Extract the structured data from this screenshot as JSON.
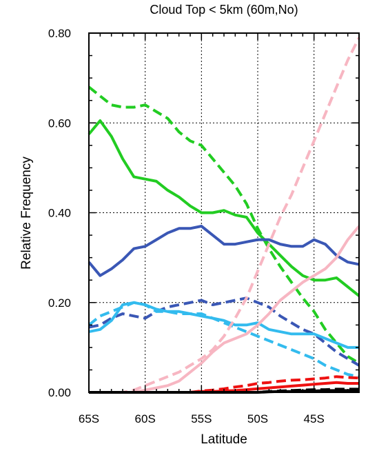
{
  "chart_data": {
    "type": "line",
    "title": "Cloud Top < 5km (60m,No)",
    "xlabel": "Latitude",
    "ylabel": "Relative Frequency",
    "xlim": [
      -65,
      -41
    ],
    "ylim": [
      0,
      0.8
    ],
    "grid": true,
    "x_ticks": [
      -65,
      -60,
      -55,
      -50,
      -45
    ],
    "x_tick_labels": [
      "65S",
      "60S",
      "55S",
      "50S",
      "45S"
    ],
    "y_ticks": [
      0,
      0.2,
      0.4,
      0.6,
      0.8
    ],
    "y_tick_labels": [
      "0.00",
      "0.20",
      "0.40",
      "0.60",
      "0.80"
    ],
    "x": [
      -65,
      -64,
      -63,
      -62,
      -61,
      -60,
      -59,
      -58,
      -57,
      -56,
      -55,
      -54,
      -53,
      -52,
      -51,
      -50,
      -49,
      -48,
      -47,
      -46,
      -45,
      -44,
      -43,
      -42,
      -41
    ],
    "series": [
      {
        "color": "#22cc22",
        "dash": false,
        "values": [
          0.575,
          0.605,
          0.57,
          0.52,
          0.48,
          0.475,
          0.47,
          0.45,
          0.435,
          0.415,
          0.4,
          0.4,
          0.405,
          0.395,
          0.39,
          0.355,
          0.33,
          0.305,
          0.28,
          0.26,
          0.25,
          0.25,
          0.255,
          0.235,
          0.215
        ]
      },
      {
        "color": "#22cc22",
        "dash": true,
        "values": [
          0.68,
          0.66,
          0.64,
          0.635,
          0.635,
          0.64,
          0.625,
          0.61,
          0.58,
          0.56,
          0.55,
          0.52,
          0.49,
          0.46,
          0.42,
          0.365,
          0.32,
          0.28,
          0.245,
          0.21,
          0.18,
          0.14,
          0.11,
          0.08,
          0.065
        ]
      },
      {
        "color": "#3a57b5",
        "dash": false,
        "values": [
          0.29,
          0.26,
          0.275,
          0.295,
          0.32,
          0.325,
          0.34,
          0.355,
          0.365,
          0.365,
          0.37,
          0.35,
          0.33,
          0.33,
          0.335,
          0.34,
          0.34,
          0.33,
          0.325,
          0.325,
          0.34,
          0.33,
          0.305,
          0.29,
          0.285
        ]
      },
      {
        "color": "#3a57b5",
        "dash": true,
        "values": [
          0.145,
          0.15,
          0.165,
          0.175,
          0.17,
          0.165,
          0.18,
          0.19,
          0.195,
          0.2,
          0.205,
          0.195,
          0.2,
          0.205,
          0.21,
          0.2,
          0.19,
          0.17,
          0.155,
          0.14,
          0.13,
          0.11,
          0.09,
          0.075,
          0.06
        ]
      },
      {
        "color": "#33bbee",
        "dash": false,
        "values": [
          0.135,
          0.14,
          0.16,
          0.195,
          0.2,
          0.195,
          0.185,
          0.18,
          0.18,
          0.175,
          0.17,
          0.165,
          0.16,
          0.15,
          0.15,
          0.155,
          0.14,
          0.135,
          0.13,
          0.13,
          0.13,
          0.12,
          0.11,
          0.1,
          0.1
        ]
      },
      {
        "color": "#33bbee",
        "dash": true,
        "values": [
          0.15,
          0.17,
          0.18,
          0.19,
          0.2,
          0.195,
          0.18,
          0.18,
          0.175,
          0.175,
          0.175,
          0.165,
          0.155,
          0.145,
          0.135,
          0.125,
          0.115,
          0.105,
          0.095,
          0.085,
          0.075,
          0.06,
          0.05,
          0.04,
          0.035
        ]
      },
      {
        "color": "#f7b6c2",
        "dash": false,
        "values": [
          0.0,
          0.0,
          0.0,
          0.0,
          0.0,
          0.005,
          0.01,
          0.015,
          0.025,
          0.045,
          0.065,
          0.09,
          0.11,
          0.12,
          0.13,
          0.15,
          0.175,
          0.205,
          0.225,
          0.245,
          0.26,
          0.275,
          0.3,
          0.34,
          0.37
        ]
      },
      {
        "color": "#f7b6c2",
        "dash": true,
        "values": [
          0.0,
          0.0,
          0.0,
          0.0,
          0.005,
          0.015,
          0.025,
          0.035,
          0.045,
          0.06,
          0.075,
          0.095,
          0.125,
          0.165,
          0.21,
          0.27,
          0.33,
          0.39,
          0.44,
          0.5,
          0.56,
          0.62,
          0.68,
          0.74,
          0.79
        ]
      },
      {
        "color": "#ee1111",
        "dash": false,
        "values": [
          0.0,
          0.0,
          0.0,
          0.0,
          0.0,
          0.0,
          0.0,
          0.0,
          0.0,
          0.0,
          0.002,
          0.002,
          0.003,
          0.004,
          0.006,
          0.008,
          0.01,
          0.012,
          0.014,
          0.016,
          0.018,
          0.02,
          0.022,
          0.02,
          0.02
        ]
      },
      {
        "color": "#ee1111",
        "dash": true,
        "values": [
          0.0,
          0.0,
          0.0,
          0.0,
          0.0,
          0.0,
          0.0,
          0.0,
          0.0,
          0.0,
          0.003,
          0.005,
          0.008,
          0.012,
          0.015,
          0.02,
          0.022,
          0.025,
          0.027,
          0.028,
          0.03,
          0.032,
          0.035,
          0.033,
          0.032
        ]
      },
      {
        "color": "#000000",
        "dash": false,
        "values": [
          0.0,
          0.0,
          0.0,
          0.0,
          0.0,
          0.0,
          0.0,
          0.0,
          0.0,
          0.0,
          0.0,
          0.0,
          0.0,
          0.0,
          0.0,
          0.0,
          0.001,
          0.002,
          0.002,
          0.003,
          0.003,
          0.004,
          0.004,
          0.004,
          0.004
        ]
      },
      {
        "color": "#000000",
        "dash": true,
        "values": [
          0.0,
          0.0,
          0.0,
          0.0,
          0.0,
          0.0,
          0.0,
          0.0,
          0.0,
          0.0,
          0.0,
          0.0,
          0.0,
          0.0,
          0.0,
          0.0,
          0.002,
          0.003,
          0.004,
          0.005,
          0.006,
          0.006,
          0.007,
          0.007,
          0.007
        ]
      }
    ]
  }
}
